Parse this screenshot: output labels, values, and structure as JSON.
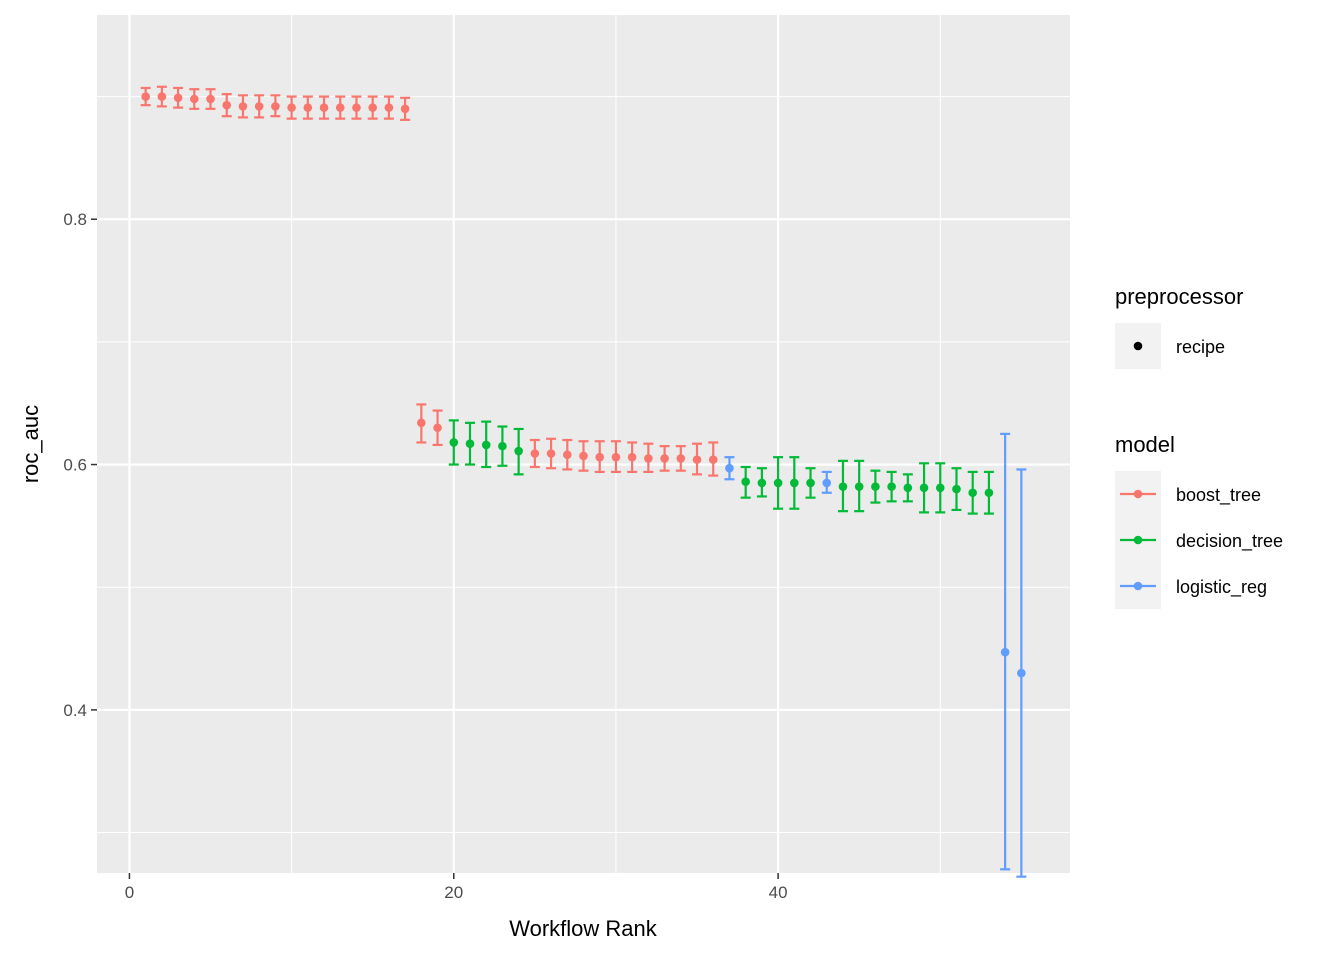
{
  "chart_data": {
    "type": "scatter",
    "title": "",
    "xlabel": "Workflow Rank",
    "ylabel": "roc_auc",
    "xlim": [
      -2,
      58
    ],
    "ylim": [
      0.267,
      0.9665
    ],
    "x_ticks": [
      0,
      20,
      40
    ],
    "x_minor_ticks": [
      10,
      30,
      50
    ],
    "y_ticks": [
      0.4,
      0.6,
      0.8
    ],
    "y_minor_ticks": [
      0.3,
      0.5,
      0.7,
      0.9
    ],
    "x_tick_labels": [
      "0",
      "20",
      "40"
    ],
    "y_tick_labels": [
      "0.4",
      "0.6",
      "0.8"
    ],
    "grid": true,
    "legend_placement": "right",
    "legends": [
      {
        "title": "preprocessor",
        "items": [
          {
            "label": "recipe",
            "color": "#000000"
          }
        ]
      },
      {
        "title": "model",
        "items": [
          {
            "label": "boost_tree",
            "color": "#F8766D"
          },
          {
            "label": "decision_tree",
            "color": "#00BA38"
          },
          {
            "label": "logistic_reg",
            "color": "#619CFF"
          }
        ]
      }
    ],
    "series": [
      {
        "name": "boost_tree",
        "color": "#F8766D",
        "points": [
          {
            "x": 1,
            "y": 0.9,
            "lo": 0.893,
            "hi": 0.907
          },
          {
            "x": 2,
            "y": 0.9,
            "lo": 0.892,
            "hi": 0.908
          },
          {
            "x": 3,
            "y": 0.899,
            "lo": 0.891,
            "hi": 0.907
          },
          {
            "x": 4,
            "y": 0.898,
            "lo": 0.89,
            "hi": 0.906
          },
          {
            "x": 5,
            "y": 0.898,
            "lo": 0.89,
            "hi": 0.906
          },
          {
            "x": 6,
            "y": 0.893,
            "lo": 0.884,
            "hi": 0.902
          },
          {
            "x": 7,
            "y": 0.892,
            "lo": 0.883,
            "hi": 0.901
          },
          {
            "x": 8,
            "y": 0.892,
            "lo": 0.883,
            "hi": 0.901
          },
          {
            "x": 9,
            "y": 0.892,
            "lo": 0.884,
            "hi": 0.901
          },
          {
            "x": 10,
            "y": 0.891,
            "lo": 0.882,
            "hi": 0.9
          },
          {
            "x": 11,
            "y": 0.891,
            "lo": 0.882,
            "hi": 0.9
          },
          {
            "x": 12,
            "y": 0.891,
            "lo": 0.882,
            "hi": 0.9
          },
          {
            "x": 13,
            "y": 0.891,
            "lo": 0.882,
            "hi": 0.9
          },
          {
            "x": 14,
            "y": 0.891,
            "lo": 0.882,
            "hi": 0.9
          },
          {
            "x": 15,
            "y": 0.891,
            "lo": 0.882,
            "hi": 0.9
          },
          {
            "x": 16,
            "y": 0.891,
            "lo": 0.882,
            "hi": 0.9
          },
          {
            "x": 17,
            "y": 0.89,
            "lo": 0.881,
            "hi": 0.899
          },
          {
            "x": 18,
            "y": 0.634,
            "lo": 0.618,
            "hi": 0.649
          },
          {
            "x": 19,
            "y": 0.63,
            "lo": 0.616,
            "hi": 0.644
          },
          {
            "x": 25,
            "y": 0.609,
            "lo": 0.598,
            "hi": 0.62
          },
          {
            "x": 26,
            "y": 0.609,
            "lo": 0.597,
            "hi": 0.621
          },
          {
            "x": 27,
            "y": 0.608,
            "lo": 0.596,
            "hi": 0.62
          },
          {
            "x": 28,
            "y": 0.607,
            "lo": 0.595,
            "hi": 0.619
          },
          {
            "x": 29,
            "y": 0.606,
            "lo": 0.594,
            "hi": 0.619
          },
          {
            "x": 30,
            "y": 0.606,
            "lo": 0.594,
            "hi": 0.619
          },
          {
            "x": 31,
            "y": 0.606,
            "lo": 0.594,
            "hi": 0.618
          },
          {
            "x": 32,
            "y": 0.605,
            "lo": 0.594,
            "hi": 0.617
          },
          {
            "x": 33,
            "y": 0.605,
            "lo": 0.595,
            "hi": 0.615
          },
          {
            "x": 34,
            "y": 0.605,
            "lo": 0.595,
            "hi": 0.615
          },
          {
            "x": 35,
            "y": 0.604,
            "lo": 0.592,
            "hi": 0.617
          },
          {
            "x": 36,
            "y": 0.604,
            "lo": 0.591,
            "hi": 0.618
          }
        ]
      },
      {
        "name": "decision_tree",
        "color": "#00BA38",
        "points": [
          {
            "x": 20,
            "y": 0.618,
            "lo": 0.6,
            "hi": 0.636
          },
          {
            "x": 21,
            "y": 0.617,
            "lo": 0.6,
            "hi": 0.634
          },
          {
            "x": 22,
            "y": 0.616,
            "lo": 0.598,
            "hi": 0.635
          },
          {
            "x": 23,
            "y": 0.615,
            "lo": 0.599,
            "hi": 0.631
          },
          {
            "x": 24,
            "y": 0.611,
            "lo": 0.592,
            "hi": 0.629
          },
          {
            "x": 38,
            "y": 0.586,
            "lo": 0.573,
            "hi": 0.598
          },
          {
            "x": 39,
            "y": 0.585,
            "lo": 0.574,
            "hi": 0.597
          },
          {
            "x": 40,
            "y": 0.585,
            "lo": 0.564,
            "hi": 0.606
          },
          {
            "x": 41,
            "y": 0.585,
            "lo": 0.564,
            "hi": 0.606
          },
          {
            "x": 42,
            "y": 0.585,
            "lo": 0.573,
            "hi": 0.597
          },
          {
            "x": 44,
            "y": 0.582,
            "lo": 0.562,
            "hi": 0.603
          },
          {
            "x": 45,
            "y": 0.582,
            "lo": 0.562,
            "hi": 0.603
          },
          {
            "x": 46,
            "y": 0.582,
            "lo": 0.569,
            "hi": 0.595
          },
          {
            "x": 47,
            "y": 0.582,
            "lo": 0.57,
            "hi": 0.594
          },
          {
            "x": 48,
            "y": 0.581,
            "lo": 0.57,
            "hi": 0.592
          },
          {
            "x": 49,
            "y": 0.581,
            "lo": 0.561,
            "hi": 0.601
          },
          {
            "x": 50,
            "y": 0.581,
            "lo": 0.561,
            "hi": 0.601
          },
          {
            "x": 51,
            "y": 0.58,
            "lo": 0.563,
            "hi": 0.597
          },
          {
            "x": 52,
            "y": 0.577,
            "lo": 0.56,
            "hi": 0.594
          },
          {
            "x": 53,
            "y": 0.577,
            "lo": 0.56,
            "hi": 0.594
          }
        ]
      },
      {
        "name": "logistic_reg",
        "color": "#619CFF",
        "points": [
          {
            "x": 37,
            "y": 0.597,
            "lo": 0.588,
            "hi": 0.606
          },
          {
            "x": 43,
            "y": 0.585,
            "lo": 0.577,
            "hi": 0.594
          },
          {
            "x": 54,
            "y": 0.447,
            "lo": 0.27,
            "hi": 0.625
          },
          {
            "x": 55,
            "y": 0.43,
            "lo": 0.264,
            "hi": 0.596
          }
        ]
      }
    ]
  }
}
